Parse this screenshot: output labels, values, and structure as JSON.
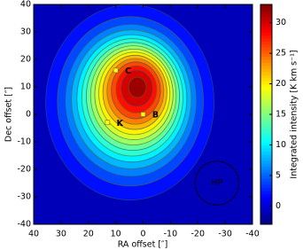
{
  "chart_data": {
    "type": "heatmap",
    "xlabel": "RA offset [″]",
    "ylabel": "Dec offset [″]",
    "colorbar_label": "Integrated intensity [K km s⁻¹]",
    "xlim": [
      40,
      -40
    ],
    "xticks": [
      40,
      30,
      20,
      10,
      0,
      -10,
      -20,
      -30,
      -40
    ],
    "ylim": [
      -40,
      40
    ],
    "yticks": [
      -40,
      -30,
      -20,
      -10,
      0,
      10,
      20,
      30,
      40
    ],
    "clim": [
      -3,
      33
    ],
    "cticks": [
      0,
      5,
      10,
      15,
      20,
      25,
      30
    ],
    "background_level": -1,
    "contour_levels": [
      2,
      4,
      6,
      8,
      10,
      12,
      14,
      16,
      18,
      20,
      22,
      24,
      26,
      28,
      30,
      32
    ],
    "points": [
      {
        "name": "C",
        "x": 10,
        "y": 16
      },
      {
        "name": "B",
        "x": 0,
        "y": 0
      },
      {
        "name": "K",
        "x": 13,
        "y": -3
      }
    ],
    "beam": {
      "label": "HP",
      "x": -27,
      "y": -25,
      "diameter": 16
    }
  }
}
